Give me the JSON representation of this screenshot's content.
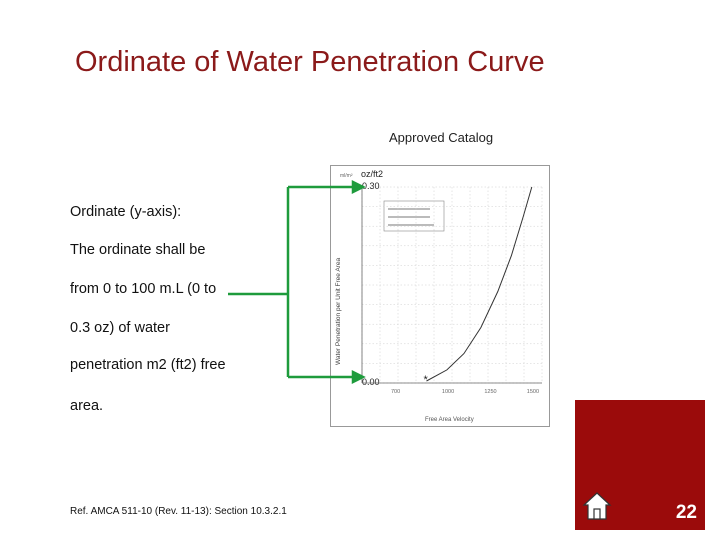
{
  "slide": {
    "title": "Ordinate of Water Penetration Curve",
    "caption": "Approved Catalog",
    "lines": [
      "Ordinate (y-axis):",
      "The ordinate shall be",
      "from 0 to 100 m.L (0 to",
      "0.3 oz) of water",
      "penetration m2 (ft2) free",
      "area."
    ],
    "reference": "Ref. AMCA 511-10 (Rev. 11-13): Section 10.3.2.1",
    "page_number": "22"
  },
  "colors": {
    "accent": "#8b1a1a",
    "connector": "#1e9b3c",
    "corner": "#9b0b0b"
  },
  "chart_data": {
    "type": "line",
    "y_unit_label": "oz/ft2",
    "y_top_label": "0.30",
    "y_bottom_label": "0.00",
    "ylim": [
      0,
      0.3
    ],
    "ylabel": "Water Penetration per Unit Free Area",
    "xlabel": "Free Area Velocity",
    "x_ticks": [
      "700",
      "1000",
      "1250",
      "1500"
    ],
    "x_range": [
      500,
      1560
    ],
    "series": [
      {
        "name": "penetration",
        "x": [
          880,
          1000,
          1100,
          1200,
          1300,
          1380,
          1450,
          1500
        ],
        "y": [
          0.003,
          0.02,
          0.045,
          0.085,
          0.14,
          0.195,
          0.255,
          0.3
        ]
      }
    ],
    "marker": {
      "x": 880,
      "y": 0.003,
      "symbol": "*"
    }
  }
}
